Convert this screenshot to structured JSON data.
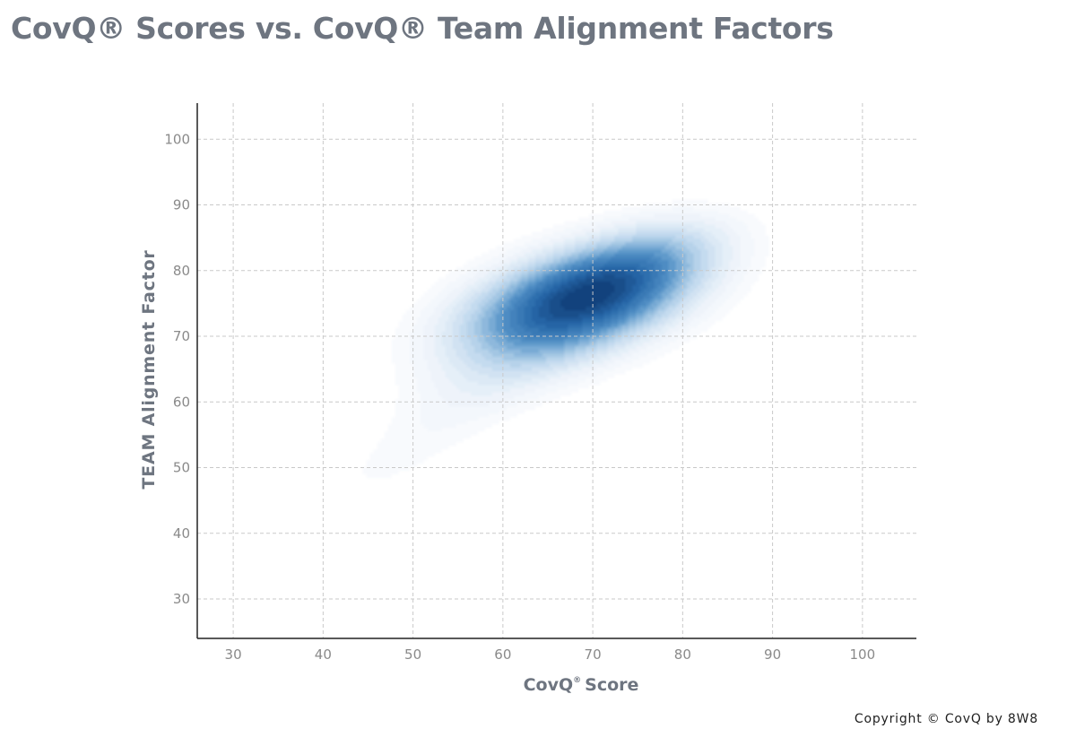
{
  "title": "CovQ® Scores vs. CovQ® Team Alignment Factors",
  "copyright": "Copyright © CovQ by 8W8",
  "chart_data": {
    "type": "heatmap",
    "subtype": "kde-density",
    "title": "CovQ® Scores vs. CovQ® Team Alignment Factors",
    "xlabel": "CovQ",
    "xlabel_superscript": "®",
    "xlabel_suffix": "Score",
    "ylabel": "TEAM Alignment Factor",
    "xlim": [
      26,
      106
    ],
    "ylim": [
      24,
      105.5
    ],
    "xticks": [
      30,
      40,
      50,
      60,
      70,
      80,
      90,
      100
    ],
    "yticks": [
      30,
      40,
      50,
      60,
      70,
      80,
      90,
      100
    ],
    "grid": true,
    "grid_style": "dashed",
    "colormap": "Blues",
    "peak": {
      "x": 68,
      "y": 75
    },
    "density_components": [
      {
        "x": 68,
        "y": 75,
        "sx": 9.5,
        "sy": 6.5,
        "rho": 0.45,
        "weight": 1.0
      },
      {
        "x": 74,
        "y": 80,
        "sx": 7,
        "sy": 5,
        "rho": 0.5,
        "weight": 0.25
      },
      {
        "x": 47,
        "y": 50,
        "sx": 7,
        "sy": 6,
        "rho": 0.7,
        "weight": 0.1
      },
      {
        "x": 58,
        "y": 62,
        "sx": 8,
        "sy": 6,
        "rho": 0.6,
        "weight": 0.15
      },
      {
        "x": 80,
        "y": 85,
        "sx": 6,
        "sy": 4,
        "rho": 0.3,
        "weight": 0.08
      }
    ]
  }
}
